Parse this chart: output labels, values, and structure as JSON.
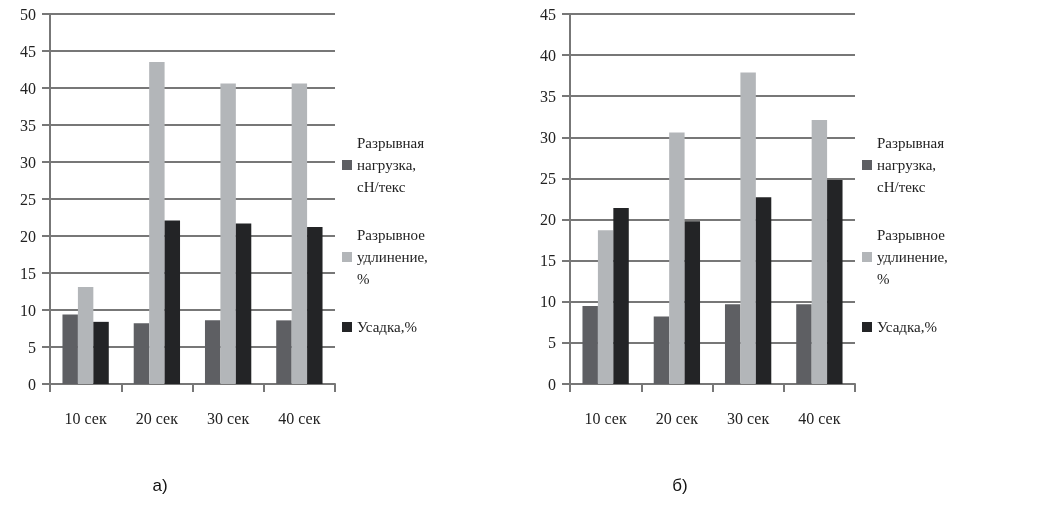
{
  "chart_data": [
    {
      "type": "bar",
      "categories": [
        "10 сек",
        "20 сек",
        "30 сек",
        "40 сек"
      ],
      "ylim": [
        0,
        50
      ],
      "yticks": [
        0,
        5,
        10,
        15,
        20,
        25,
        30,
        35,
        40,
        45,
        50
      ],
      "grid": "y",
      "legend": "right",
      "annotations": [
        "а)"
      ],
      "series": [
        {
          "name": "Разрывная нагрузка, сН/текс",
          "color": "#5e5f63",
          "values": [
            9.4,
            8.2,
            8.6,
            8.6
          ]
        },
        {
          "name": "Разрывное удлинение,  %",
          "color": "#b3b6b9",
          "values": [
            13.1,
            43.5,
            40.6,
            40.6
          ]
        },
        {
          "name": "Усадка,%",
          "color": "#232426",
          "values": [
            8.4,
            22.1,
            21.7,
            21.2
          ]
        }
      ]
    },
    {
      "type": "bar",
      "categories": [
        "10 сек",
        "20 сек",
        "30 сек",
        "40 сек"
      ],
      "ylim": [
        0,
        45
      ],
      "yticks": [
        0,
        5,
        10,
        15,
        20,
        25,
        30,
        35,
        40,
        45
      ],
      "grid": "y",
      "legend": "right",
      "annotations": [
        "б)"
      ],
      "series": [
        {
          "name": "Разрывная нагрузка, сН/текс",
          "color": "#5e5f63",
          "values": [
            9.5,
            8.2,
            9.7,
            9.7
          ]
        },
        {
          "name": "Разрывное удлинение,  %",
          "color": "#b3b6b9",
          "values": [
            18.7,
            30.6,
            37.9,
            32.1
          ]
        },
        {
          "name": "Усадка,%",
          "color": "#232426",
          "values": [
            21.4,
            19.8,
            22.7,
            24.8
          ]
        }
      ]
    }
  ]
}
